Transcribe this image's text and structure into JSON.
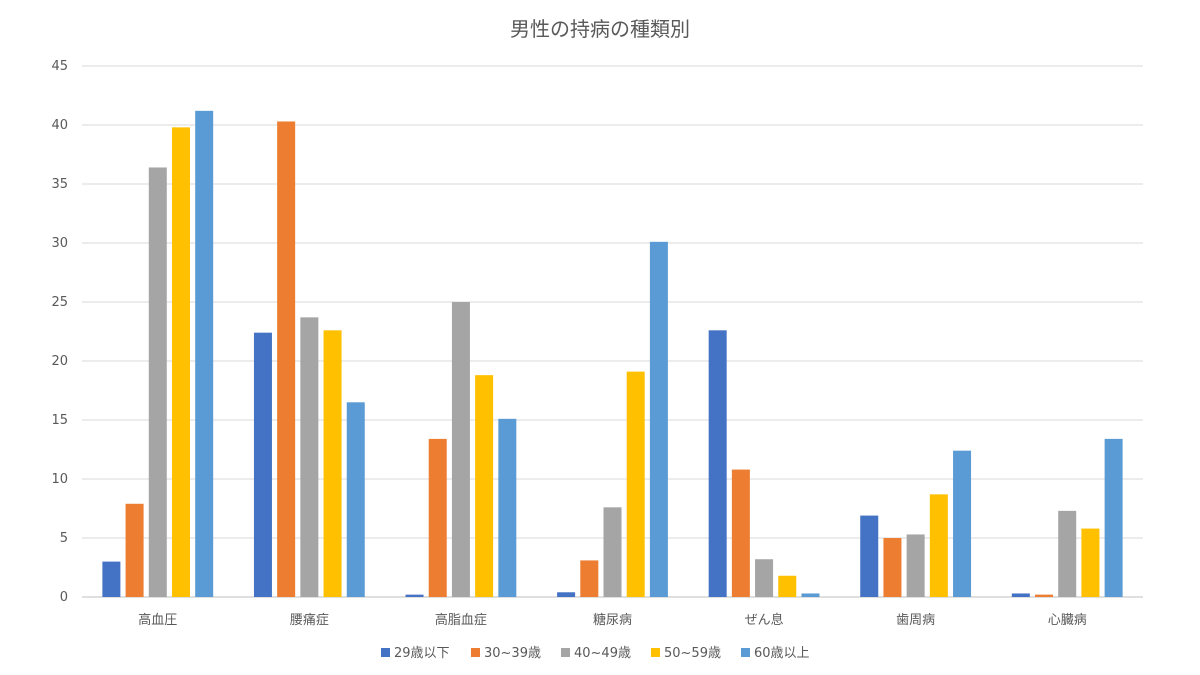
{
  "chart_data": {
    "type": "bar",
    "title": "男性の持病の種類別",
    "xlabel": "",
    "ylabel": "",
    "ylim": [
      0,
      45
    ],
    "yticks": [
      0,
      5,
      10,
      15,
      20,
      25,
      30,
      35,
      40,
      45
    ],
    "grid": true,
    "legend_position": "bottom",
    "categories": [
      "高血圧",
      "腰痛症",
      "高脂血症",
      "糖尿病",
      "ぜん息",
      "歯周病",
      "心臓病"
    ],
    "series": [
      {
        "name": "29歳以下",
        "color": "#4472C4",
        "values": [
          3.0,
          22.4,
          0.2,
          0.4,
          22.6,
          6.9,
          0.3
        ]
      },
      {
        "name": "30~39歳",
        "color": "#ED7D31",
        "values": [
          7.9,
          40.3,
          13.4,
          3.1,
          10.8,
          5.0,
          0.2
        ]
      },
      {
        "name": "40~49歳",
        "color": "#A5A5A5",
        "values": [
          36.4,
          23.7,
          25.0,
          7.6,
          3.2,
          5.3,
          7.3
        ]
      },
      {
        "name": "50~59歳",
        "color": "#FFC000",
        "values": [
          39.8,
          22.6,
          18.8,
          19.1,
          1.8,
          8.7,
          5.8
        ]
      },
      {
        "name": "60歳以上",
        "color": "#5B9BD5",
        "values": [
          41.2,
          16.5,
          15.1,
          30.1,
          0.3,
          12.4,
          13.4
        ]
      }
    ]
  }
}
